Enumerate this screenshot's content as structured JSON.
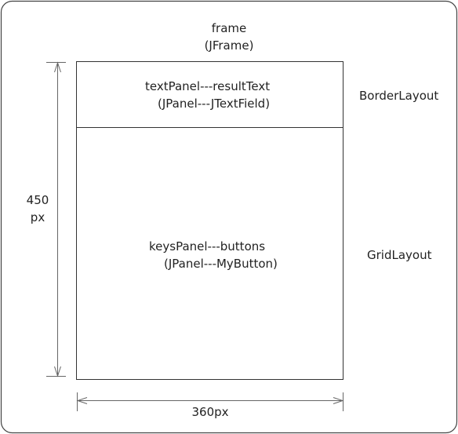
{
  "frame": {
    "title": "frame",
    "subtitle": "(JFrame)"
  },
  "text_panel": {
    "label": "textPanel---resultText",
    "sublabel": "(JPanel---JTextField)",
    "layout": "BorderLayout"
  },
  "keys_panel": {
    "label": "keysPanel---buttons",
    "sublabel": "(JPanel---MyButton)",
    "layout": "GridLayout"
  },
  "dimensions": {
    "height_value": "450",
    "height_unit": "px",
    "width_label": "360px"
  },
  "colors": {
    "stroke": "#333333",
    "dimension_line": "#666666"
  }
}
